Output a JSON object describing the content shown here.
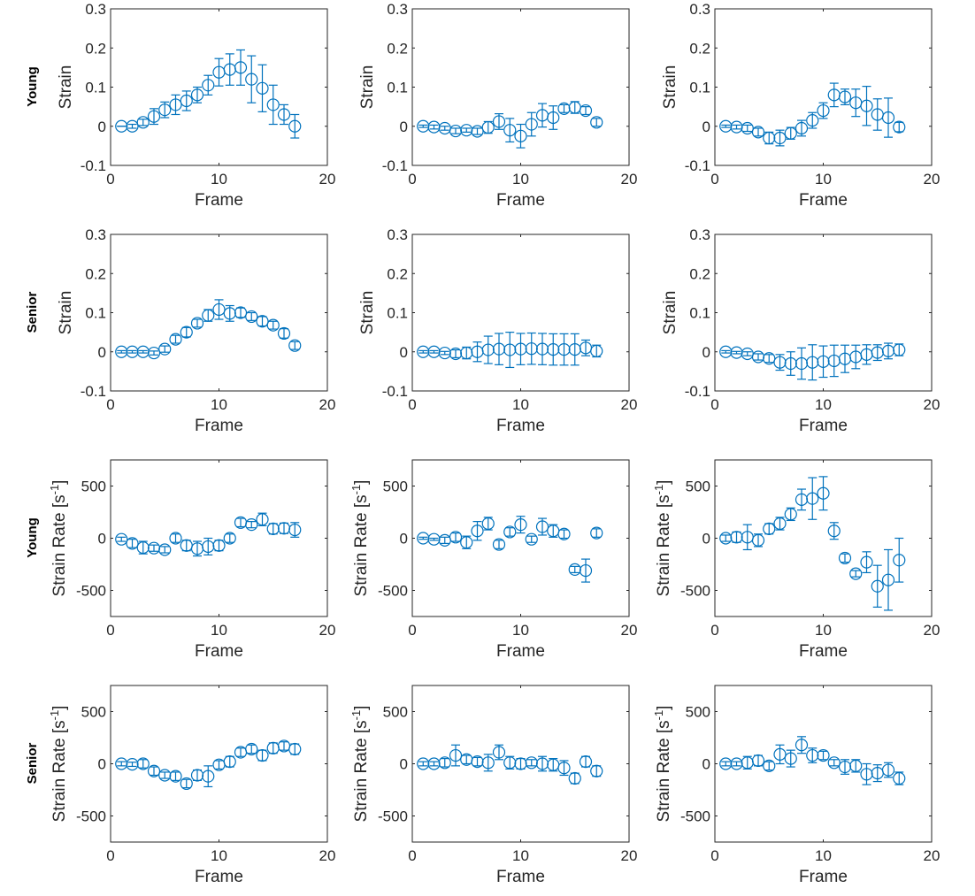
{
  "marker_color": "#0072BD",
  "row_labels": [
    "Young",
    "Senior",
    "Young",
    "Senior"
  ],
  "chart_data": [
    {
      "type": "scatter",
      "row": 0,
      "col": 0,
      "xlabel": "Frame",
      "ylabel": "Strain",
      "xlim": [
        0,
        20
      ],
      "ylim": [
        -0.1,
        0.3
      ],
      "xticks": [
        0,
        10,
        20
      ],
      "yticks": [
        -0.1,
        0,
        0.1,
        0.2,
        0.3
      ],
      "ytick_labels": [
        "-0.1",
        "0",
        "0.1",
        "0.2",
        "0.3"
      ],
      "x": [
        1,
        2,
        3,
        4,
        5,
        6,
        7,
        8,
        9,
        10,
        11,
        12,
        13,
        14,
        15,
        16,
        17
      ],
      "y": [
        0,
        0,
        0.01,
        0.025,
        0.042,
        0.055,
        0.065,
        0.08,
        0.105,
        0.138,
        0.145,
        0.15,
        0.12,
        0.097,
        0.055,
        0.03,
        0
      ],
      "err": [
        0,
        0.005,
        0.008,
        0.02,
        0.02,
        0.025,
        0.025,
        0.02,
        0.025,
        0.035,
        0.04,
        0.045,
        0.06,
        0.06,
        0.05,
        0.025,
        0.03
      ]
    },
    {
      "type": "scatter",
      "row": 0,
      "col": 1,
      "xlabel": "Frame",
      "ylabel": "Strain",
      "xlim": [
        0,
        20
      ],
      "ylim": [
        -0.1,
        0.3
      ],
      "xticks": [
        0,
        10,
        20
      ],
      "yticks": [
        -0.1,
        0,
        0.1,
        0.2,
        0.3
      ],
      "ytick_labels": [
        "-0.1",
        "0",
        "0.1",
        "0.2",
        "0.3"
      ],
      "x": [
        1,
        2,
        3,
        4,
        5,
        6,
        7,
        8,
        9,
        10,
        11,
        12,
        13,
        14,
        15,
        16,
        17
      ],
      "y": [
        0,
        -0.002,
        -0.005,
        -0.012,
        -0.01,
        -0.013,
        -0.003,
        0.012,
        -0.01,
        -0.025,
        0.005,
        0.028,
        0.022,
        0.045,
        0.048,
        0.04,
        0.01
      ],
      "err": [
        0.003,
        0.005,
        0.005,
        0.007,
        0.005,
        0.008,
        0.015,
        0.02,
        0.03,
        0.03,
        0.03,
        0.03,
        0.03,
        0.01,
        0.015,
        0.01,
        0.01
      ]
    },
    {
      "type": "scatter",
      "row": 0,
      "col": 2,
      "xlabel": "Frame",
      "ylabel": "Strain",
      "xlim": [
        0,
        20
      ],
      "ylim": [
        -0.1,
        0.3
      ],
      "xticks": [
        0,
        10,
        20
      ],
      "yticks": [
        -0.1,
        0,
        0.1,
        0.2,
        0.3
      ],
      "ytick_labels": [
        "-0.1",
        "0",
        "0.1",
        "0.2",
        "0.3"
      ],
      "x": [
        1,
        2,
        3,
        4,
        5,
        6,
        7,
        8,
        9,
        10,
        11,
        12,
        13,
        14,
        15,
        16,
        17
      ],
      "y": [
        0,
        -0.002,
        -0.005,
        -0.015,
        -0.03,
        -0.03,
        -0.018,
        -0.005,
        0.015,
        0.04,
        0.08,
        0.075,
        0.06,
        0.052,
        0.03,
        0.022,
        -0.002
      ],
      "err": [
        0.003,
        0.005,
        0.008,
        0.01,
        0.015,
        0.02,
        0.015,
        0.02,
        0.02,
        0.02,
        0.03,
        0.02,
        0.035,
        0.05,
        0.04,
        0.05,
        0.012
      ]
    },
    {
      "type": "scatter",
      "row": 1,
      "col": 0,
      "xlabel": "Frame",
      "ylabel": "Strain",
      "xlim": [
        0,
        20
      ],
      "ylim": [
        -0.1,
        0.3
      ],
      "xticks": [
        0,
        10,
        20
      ],
      "yticks": [
        -0.1,
        0,
        0.1,
        0.2,
        0.3
      ],
      "ytick_labels": [
        "-0.1",
        "0",
        "0.1",
        "0.2",
        "0.3"
      ],
      "x": [
        1,
        2,
        3,
        4,
        5,
        6,
        7,
        8,
        9,
        10,
        11,
        12,
        13,
        14,
        15,
        16,
        17
      ],
      "y": [
        0,
        0,
        0,
        -0.003,
        0.007,
        0.032,
        0.05,
        0.073,
        0.093,
        0.108,
        0.098,
        0.1,
        0.09,
        0.078,
        0.068,
        0.047,
        0.016
      ],
      "err": [
        0.003,
        0.003,
        0.003,
        0.005,
        0.008,
        0.01,
        0.012,
        0.01,
        0.015,
        0.025,
        0.02,
        0.012,
        0.01,
        0.012,
        0.01,
        0.012,
        0.01
      ]
    },
    {
      "type": "scatter",
      "row": 1,
      "col": 1,
      "xlabel": "Frame",
      "ylabel": "Strain",
      "xlim": [
        0,
        20
      ],
      "ylim": [
        -0.1,
        0.3
      ],
      "xticks": [
        0,
        10,
        20
      ],
      "yticks": [
        -0.1,
        0,
        0.1,
        0.2,
        0.3
      ],
      "ytick_labels": [
        "-0.1",
        "0",
        "0.1",
        "0.2",
        "0.3"
      ],
      "x": [
        1,
        2,
        3,
        4,
        5,
        6,
        7,
        8,
        9,
        10,
        11,
        12,
        13,
        14,
        15,
        16,
        17
      ],
      "y": [
        0,
        0,
        -0.003,
        -0.005,
        -0.003,
        0,
        0.005,
        0.007,
        0.005,
        0.007,
        0.008,
        0.007,
        0.006,
        0.006,
        0.006,
        0.01,
        0.002
      ],
      "err": [
        0.003,
        0.003,
        0.004,
        0.01,
        0.015,
        0.025,
        0.035,
        0.04,
        0.045,
        0.04,
        0.04,
        0.04,
        0.04,
        0.04,
        0.04,
        0.02,
        0.015
      ]
    },
    {
      "type": "scatter",
      "row": 1,
      "col": 2,
      "xlabel": "Frame",
      "ylabel": "Strain",
      "xlim": [
        0,
        20
      ],
      "ylim": [
        -0.1,
        0.3
      ],
      "xticks": [
        0,
        10,
        20
      ],
      "yticks": [
        -0.1,
        0,
        0.1,
        0.2,
        0.3
      ],
      "ytick_labels": [
        "-0.1",
        "0",
        "0.1",
        "0.2",
        "0.3"
      ],
      "x": [
        1,
        2,
        3,
        4,
        5,
        6,
        7,
        8,
        9,
        10,
        11,
        12,
        13,
        14,
        15,
        16,
        17
      ],
      "y": [
        0,
        -0.002,
        -0.005,
        -0.013,
        -0.017,
        -0.027,
        -0.03,
        -0.03,
        -0.027,
        -0.025,
        -0.023,
        -0.018,
        -0.013,
        -0.007,
        -0.002,
        0.002,
        0.005
      ],
      "err": [
        0.003,
        0.003,
        0.005,
        0.008,
        0.01,
        0.02,
        0.03,
        0.04,
        0.045,
        0.04,
        0.04,
        0.035,
        0.03,
        0.025,
        0.02,
        0.02,
        0.015
      ]
    },
    {
      "type": "scatter",
      "row": 2,
      "col": 0,
      "xlabel": "Frame",
      "ylabel": "Strain Rate [s",
      "ylabel_sup": "-1",
      "ylabel_end": "]",
      "xlim": [
        0,
        20
      ],
      "ylim": [
        -750,
        750
      ],
      "xticks": [
        0,
        10,
        20
      ],
      "yticks": [
        -500,
        0,
        500
      ],
      "ytick_labels": [
        "-500",
        "0",
        "500"
      ],
      "x": [
        1,
        2,
        3,
        4,
        5,
        6,
        7,
        8,
        9,
        10,
        11,
        12,
        13,
        14,
        15,
        16,
        17
      ],
      "y": [
        -10,
        -50,
        -90,
        -95,
        -110,
        0,
        -70,
        -100,
        -80,
        -70,
        0,
        150,
        130,
        180,
        90,
        95,
        80
      ],
      "err": [
        20,
        40,
        60,
        30,
        30,
        40,
        50,
        70,
        80,
        50,
        40,
        40,
        30,
        60,
        50,
        50,
        70
      ]
    },
    {
      "type": "scatter",
      "row": 2,
      "col": 1,
      "xlabel": "Frame",
      "ylabel": "Strain Rate [s",
      "ylabel_sup": "-1",
      "ylabel_end": "]",
      "xlim": [
        0,
        20
      ],
      "ylim": [
        -750,
        750
      ],
      "xticks": [
        0,
        10,
        20
      ],
      "yticks": [
        -500,
        0,
        500
      ],
      "ytick_labels": [
        "-500",
        "0",
        "500"
      ],
      "x": [
        1,
        2,
        3,
        4,
        5,
        6,
        7,
        8,
        9,
        10,
        11,
        12,
        13,
        14,
        15,
        16,
        17
      ],
      "y": [
        0,
        -10,
        -20,
        10,
        -40,
        70,
        140,
        -60,
        60,
        130,
        -10,
        110,
        70,
        40,
        -300,
        -310,
        50
      ],
      "err": [
        10,
        10,
        30,
        40,
        60,
        90,
        60,
        40,
        40,
        80,
        30,
        80,
        60,
        40,
        30,
        110,
        40
      ]
    },
    {
      "type": "scatter",
      "row": 2,
      "col": 2,
      "xlabel": "Frame",
      "ylabel": "Strain Rate [s",
      "ylabel_sup": "-1",
      "ylabel_end": "]",
      "xlim": [
        0,
        20
      ],
      "ylim": [
        -750,
        750
      ],
      "xticks": [
        0,
        10,
        20
      ],
      "yticks": [
        -500,
        0,
        500
      ],
      "ytick_labels": [
        "-500",
        "0",
        "500"
      ],
      "x": [
        1,
        2,
        3,
        4,
        5,
        6,
        7,
        8,
        9,
        10,
        11,
        12,
        13,
        14,
        15,
        16,
        17
      ],
      "y": [
        0,
        10,
        10,
        -20,
        90,
        140,
        230,
        370,
        380,
        430,
        70,
        -190,
        -340,
        -230,
        -460,
        -400,
        -210
      ],
      "err": [
        30,
        50,
        120,
        60,
        50,
        60,
        60,
        100,
        200,
        160,
        80,
        40,
        30,
        100,
        200,
        290,
        210
      ]
    },
    {
      "type": "scatter",
      "row": 3,
      "col": 0,
      "xlabel": "Frame",
      "ylabel": "Strain Rate [s",
      "ylabel_sup": "-1",
      "ylabel_end": "]",
      "xlim": [
        0,
        20
      ],
      "ylim": [
        -750,
        750
      ],
      "xticks": [
        0,
        10,
        20
      ],
      "yticks": [
        -500,
        0,
        500
      ],
      "ytick_labels": [
        "-500",
        "0",
        "500"
      ],
      "x": [
        1,
        2,
        3,
        4,
        5,
        6,
        7,
        8,
        9,
        10,
        11,
        12,
        13,
        14,
        15,
        16,
        17
      ],
      "y": [
        0,
        -5,
        0,
        -70,
        -110,
        -120,
        -190,
        -110,
        -120,
        -10,
        20,
        110,
        140,
        80,
        150,
        170,
        140
      ],
      "err": [
        20,
        20,
        40,
        40,
        30,
        40,
        40,
        50,
        100,
        40,
        50,
        40,
        40,
        50,
        50,
        40,
        50
      ]
    },
    {
      "type": "scatter",
      "row": 3,
      "col": 1,
      "xlabel": "Frame",
      "ylabel": "Strain Rate [s",
      "ylabel_sup": "-1",
      "ylabel_end": "]",
      "xlim": [
        0,
        20
      ],
      "ylim": [
        -750,
        750
      ],
      "xticks": [
        0,
        10,
        20
      ],
      "yticks": [
        -500,
        0,
        500
      ],
      "ytick_labels": [
        "-500",
        "0",
        "500"
      ],
      "x": [
        1,
        2,
        3,
        4,
        5,
        6,
        7,
        8,
        9,
        10,
        11,
        12,
        13,
        14,
        15,
        16,
        17
      ],
      "y": [
        0,
        0,
        10,
        80,
        40,
        20,
        10,
        110,
        10,
        0,
        10,
        0,
        -10,
        -40,
        -140,
        20,
        -70
      ],
      "err": [
        20,
        20,
        40,
        100,
        40,
        40,
        80,
        70,
        60,
        50,
        30,
        70,
        60,
        70,
        50,
        50,
        50
      ]
    },
    {
      "type": "scatter",
      "row": 3,
      "col": 2,
      "xlabel": "Frame",
      "ylabel": "Strain Rate [s",
      "ylabel_sup": "-1",
      "ylabel_end": "]",
      "xlim": [
        0,
        20
      ],
      "ylim": [
        -750,
        750
      ],
      "xticks": [
        0,
        10,
        20
      ],
      "yticks": [
        -500,
        0,
        500
      ],
      "ytick_labels": [
        "-500",
        "0",
        "500"
      ],
      "x": [
        1,
        2,
        3,
        4,
        5,
        6,
        7,
        8,
        9,
        10,
        11,
        12,
        13,
        14,
        15,
        16,
        17
      ],
      "y": [
        0,
        0,
        10,
        30,
        -20,
        90,
        50,
        180,
        80,
        80,
        10,
        -30,
        -20,
        -100,
        -90,
        -60,
        -140
      ],
      "err": [
        20,
        20,
        60,
        50,
        40,
        90,
        80,
        80,
        70,
        40,
        30,
        70,
        60,
        100,
        80,
        70,
        60
      ]
    }
  ]
}
